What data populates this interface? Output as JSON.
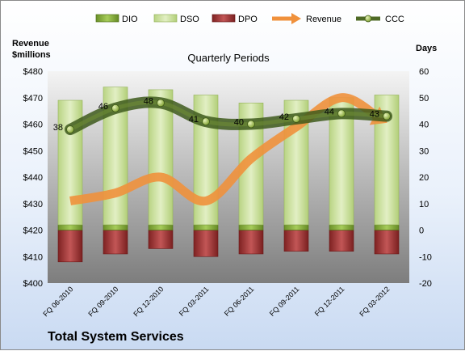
{
  "company": "Total System Services",
  "chart_data": {
    "type": "bar",
    "title": "Quarterly Periods",
    "left_axis_title": [
      "Revenue",
      "$millions"
    ],
    "right_axis_title": "Days",
    "left_axis": {
      "min": 400,
      "max": 480,
      "step": 10,
      "prefix": "$"
    },
    "right_axis": {
      "min": -20,
      "max": 60,
      "step": 10
    },
    "categories": [
      "FQ 06-2010",
      "FQ 09-2010",
      "FQ 12-2010",
      "FQ 03-2011",
      "FQ 06-2011",
      "FQ 09-2011",
      "FQ 12-2011",
      "FQ 03-2012"
    ],
    "legend_position": "top",
    "series": [
      {
        "name": "DIO",
        "kind": "stacked-bar",
        "axis": "right",
        "color": "#7fa832",
        "values": [
          2,
          2,
          2,
          2,
          2,
          2,
          2,
          2
        ]
      },
      {
        "name": "DSO",
        "kind": "stacked-bar",
        "axis": "right",
        "color": "#cfe3a3",
        "values": [
          47,
          52,
          51,
          49,
          46,
          47,
          48,
          49
        ]
      },
      {
        "name": "DPO",
        "kind": "negative-bar",
        "axis": "right",
        "color": "#9b2f2f",
        "values": [
          -12,
          -9,
          -7,
          -10,
          -9,
          -8,
          -8,
          -9
        ]
      },
      {
        "name": "Revenue",
        "kind": "line",
        "axis": "left",
        "color": "#f0913c",
        "values": [
          431,
          434,
          440,
          431,
          447,
          459,
          470,
          462
        ]
      },
      {
        "name": "CCC",
        "kind": "line-markers",
        "axis": "right",
        "color": "#4f6a26",
        "values": [
          38,
          46,
          48,
          41,
          40,
          42,
          44,
          43
        ],
        "labels": [
          "38",
          "46",
          "48",
          "41",
          "40",
          "42",
          "44",
          "43"
        ]
      }
    ]
  }
}
